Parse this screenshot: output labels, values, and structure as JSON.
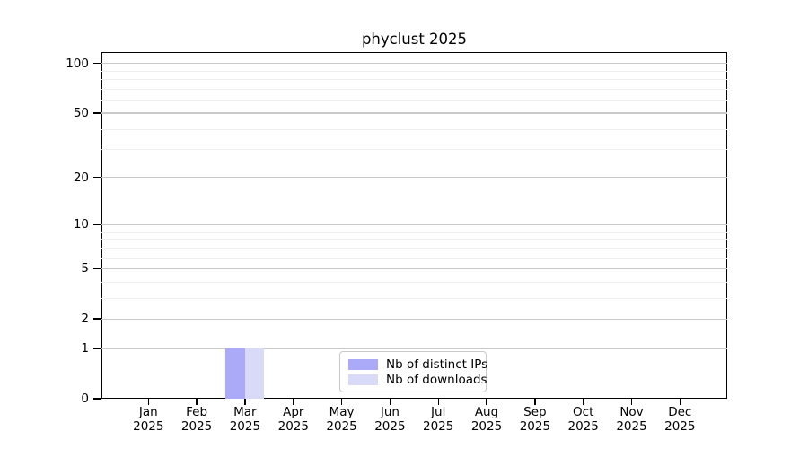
{
  "chart_data": {
    "type": "bar",
    "title": "phyclust 2025",
    "months": [
      "Jan",
      "Feb",
      "Mar",
      "Apr",
      "May",
      "Jun",
      "Jul",
      "Aug",
      "Sep",
      "Oct",
      "Nov",
      "Dec"
    ],
    "year": "2025",
    "series": [
      {
        "name": "Nb of distinct IPs",
        "color": "#aaaaf8",
        "values": [
          0,
          0,
          1,
          0,
          0,
          0,
          0,
          0,
          0,
          0,
          0,
          0
        ]
      },
      {
        "name": "Nb of downloads",
        "color": "#d9d9f8",
        "values": [
          0,
          0,
          1,
          0,
          0,
          0,
          0,
          0,
          0,
          0,
          0,
          0
        ]
      }
    ],
    "yscale": "log1p",
    "yticks": [
      0,
      1,
      2,
      5,
      10,
      20,
      50,
      100
    ],
    "yminorticks": [
      3,
      4,
      6,
      7,
      8,
      9,
      30,
      40,
      60,
      70,
      80,
      90
    ],
    "ylim": [
      0,
      117
    ],
    "grid": "horizontal",
    "legend_position": "lower center",
    "colors": {
      "major_grid": "#c9c9c9",
      "minor_grid": "#efefef",
      "axis": "#000000",
      "legend_border": "#c9c9c9"
    }
  }
}
